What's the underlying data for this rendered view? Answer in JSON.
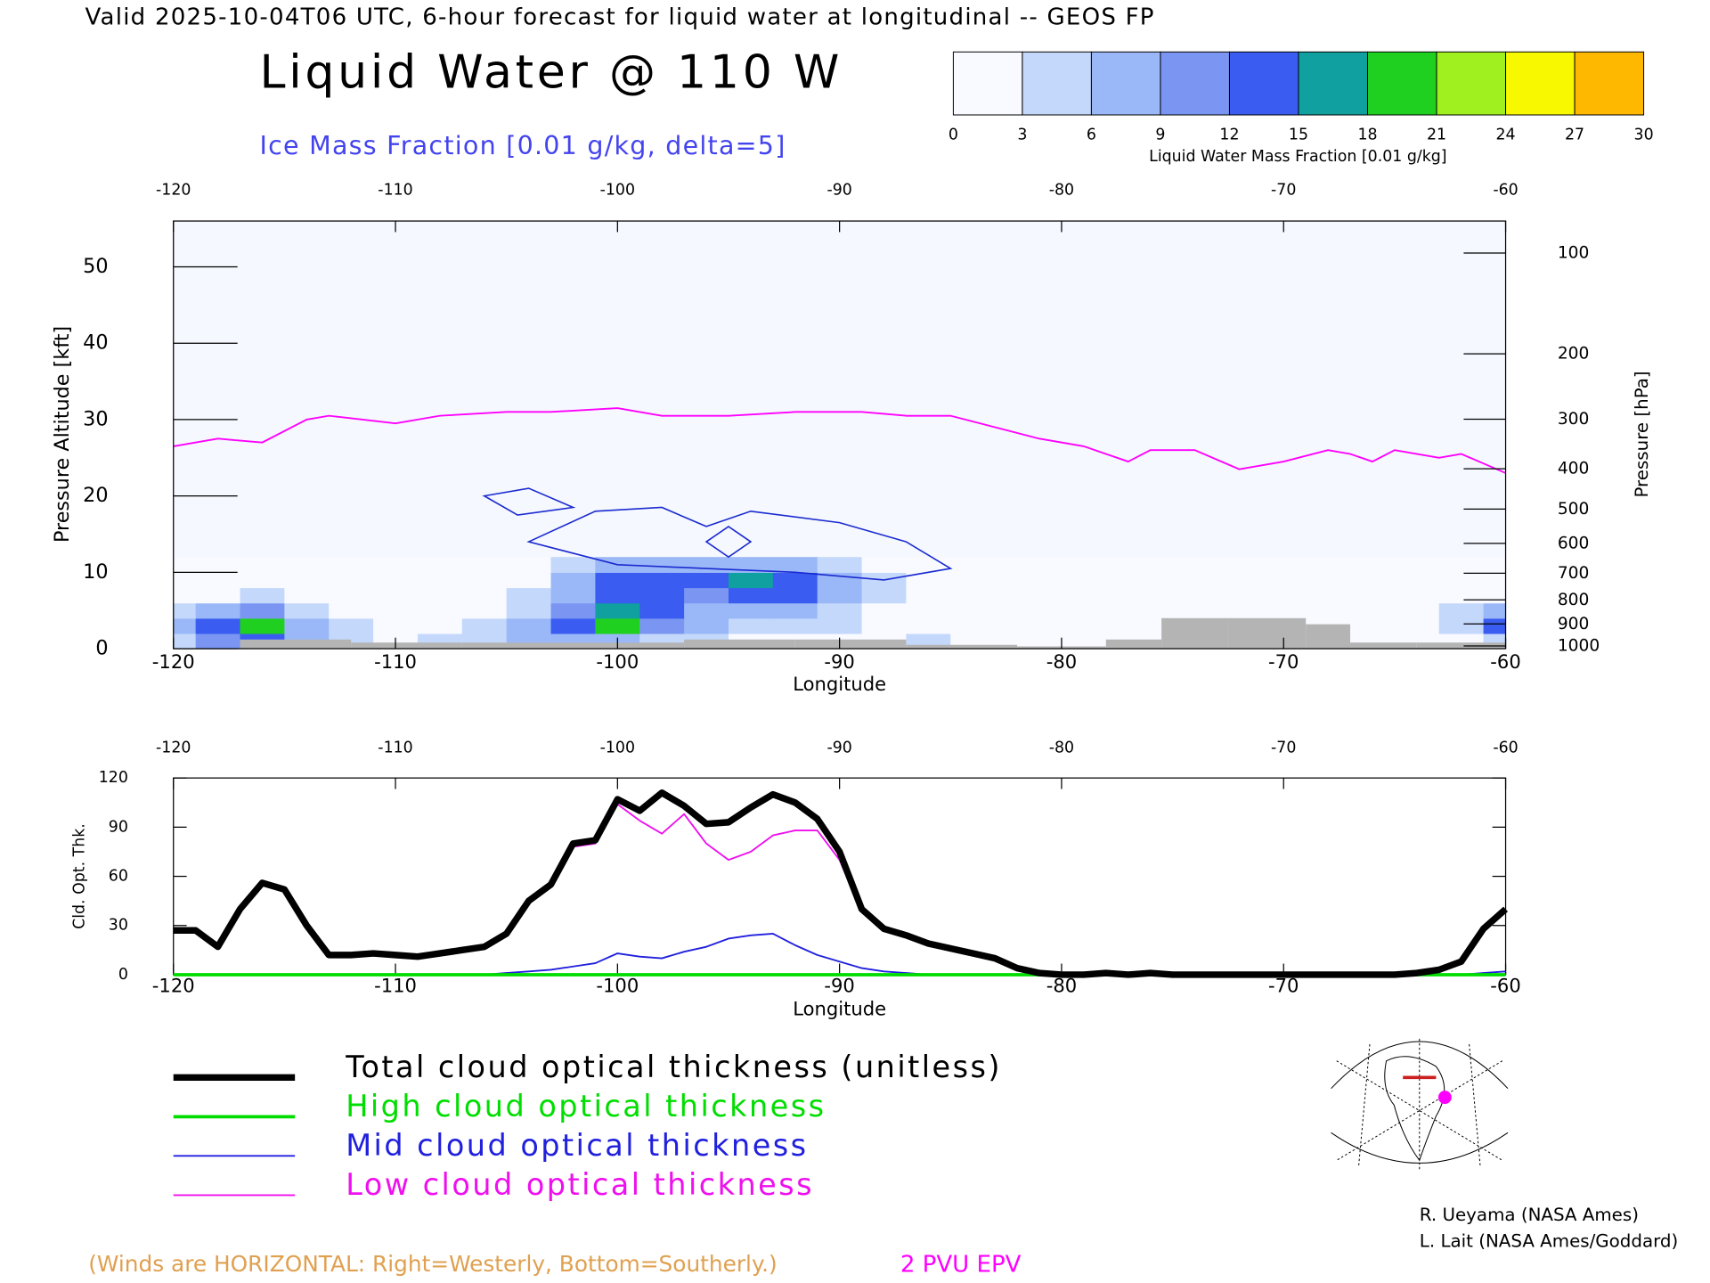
{
  "header": "Valid 2025-10-04T06 UTC, 6-hour forecast for liquid water at longitudinal -- GEOS FP",
  "chart_data": [
    {
      "type": "cross_section",
      "title": "Liquid Water @ 110 W",
      "subtitle": "Ice Mass Fraction [0.01 g/kg, delta=5]",
      "xlabel": "Longitude",
      "ylabel": "Pressure Altitude [kft]",
      "y2label": "Pressure [hPa]",
      "xlim": [
        -120,
        -60
      ],
      "xticks": [
        -120,
        -110,
        -100,
        -90,
        -80,
        -70,
        -60
      ],
      "ylim": [
        0,
        56
      ],
      "yticks": [
        0,
        10,
        20,
        30,
        40,
        50
      ],
      "y2scale": "pressure",
      "y2ticks": [
        100,
        200,
        300,
        400,
        500,
        600,
        700,
        800,
        900,
        1000
      ],
      "background": "#f5f8fe",
      "colorbar": {
        "label": "Liquid Water Mass Fraction [0.01 g/kg]",
        "ticks": [
          0,
          3,
          6,
          9,
          12,
          15,
          18,
          21,
          24,
          27,
          30
        ],
        "colors": [
          "#f8faff",
          "#c4d8fb",
          "#9ab8f7",
          "#7a96f2",
          "#3a5cf0",
          "#10a0a0",
          "#20d020",
          "#a0f020",
          "#f8f800",
          "#ffb800",
          "#ff6000"
        ]
      },
      "liquid_water": {
        "x": [
          -120,
          -118,
          -116,
          -114,
          -112,
          -110,
          -108,
          -106,
          -104,
          -102,
          -100,
          -98,
          -96,
          -94,
          -92,
          -90,
          -88,
          -86,
          -84,
          -82,
          -80,
          -78,
          -76,
          -74,
          -72,
          -70,
          -68,
          -66,
          -64,
          -62,
          -60
        ],
        "y": [
          1,
          3,
          5,
          7,
          9,
          11
        ],
        "values": [
          [
            4,
            10,
            14,
            6,
            3,
            2,
            3,
            4,
            6,
            8,
            6,
            4,
            3,
            2,
            2,
            1,
            2,
            3,
            1,
            0,
            0,
            0,
            0,
            0,
            0,
            0,
            0,
            0,
            0,
            2,
            4
          ],
          [
            6,
            14,
            18,
            8,
            3,
            2,
            2,
            3,
            6,
            14,
            18,
            10,
            6,
            5,
            4,
            3,
            2,
            1,
            0,
            0,
            0,
            0,
            0,
            0,
            0,
            0,
            0,
            0,
            0,
            4,
            12
          ],
          [
            3,
            8,
            10,
            4,
            1,
            0,
            0,
            2,
            5,
            10,
            16,
            12,
            8,
            8,
            7,
            5,
            2,
            0,
            0,
            0,
            0,
            0,
            0,
            0,
            0,
            0,
            0,
            0,
            0,
            3,
            8
          ],
          [
            0,
            2,
            3,
            1,
            0,
            0,
            0,
            1,
            3,
            8,
            14,
            12,
            10,
            14,
            12,
            8,
            3,
            0,
            0,
            0,
            0,
            0,
            0,
            0,
            0,
            0,
            0,
            0,
            0,
            0,
            2
          ],
          [
            0,
            0,
            0,
            0,
            0,
            0,
            0,
            0,
            2,
            6,
            12,
            14,
            12,
            16,
            14,
            8,
            4,
            1,
            0,
            0,
            0,
            0,
            0,
            0,
            0,
            0,
            0,
            0,
            0,
            0,
            0
          ],
          [
            0,
            0,
            0,
            0,
            0,
            0,
            0,
            0,
            1,
            3,
            6,
            8,
            6,
            8,
            6,
            4,
            2,
            0,
            0,
            0,
            0,
            0,
            0,
            0,
            0,
            0,
            0,
            0,
            0,
            0,
            0
          ]
        ]
      },
      "ice_color": "#1a2ad0",
      "ice_contours": [
        {
          "x": [
            -104,
            -101,
            -98,
            -96,
            -94,
            -90,
            -87,
            -85,
            -88,
            -92,
            -96,
            -100
          ],
          "values": [
            14,
            18,
            18.5,
            16,
            18,
            16.5,
            14,
            10.5,
            9,
            10,
            10.5,
            11
          ]
        },
        {
          "x": [
            -106,
            -104,
            -102,
            -104.5
          ],
          "values": [
            20,
            21,
            18.5,
            17.5
          ]
        },
        {
          "x": [
            -96,
            -95,
            -94,
            -95
          ],
          "values": [
            14,
            16,
            14,
            12
          ]
        }
      ],
      "terrain": {
        "color": "#b4b4b4",
        "x": [
          -117,
          -112,
          -107,
          -102,
          -97,
          -92,
          -87,
          -82,
          -78,
          -75.5,
          -72.5,
          -69,
          -67,
          -64
        ],
        "values": [
          1.2,
          0.8,
          0.8,
          0.8,
          1.2,
          1.2,
          0.5,
          0.3,
          1.2,
          4,
          4,
          3.2,
          0.8,
          0.8
        ]
      },
      "series": [
        {
          "name": "2 PVU EPV",
          "color": "#ff00ff",
          "x": [
            -120,
            -118,
            -116,
            -114,
            -113,
            -110,
            -108,
            -105,
            -103,
            -100,
            -98,
            -95,
            -92,
            -89,
            -87,
            -85,
            -83,
            -81,
            -79,
            -78,
            -77,
            -76,
            -74,
            -72,
            -70,
            -68,
            -67,
            -66,
            -65,
            -63,
            -62,
            -60
          ],
          "values": [
            26.5,
            27.5,
            27,
            30,
            30.5,
            29.5,
            30.5,
            31,
            31,
            31.5,
            30.5,
            30.5,
            31,
            31,
            30.5,
            30.5,
            29,
            27.5,
            26.5,
            25.5,
            24.5,
            26,
            26,
            23.5,
            24.5,
            26,
            25.5,
            24.5,
            26,
            25,
            25.5,
            23
          ]
        }
      ],
      "note": "(Winds are HORIZONTAL: Right=Westerly, Bottom=Southerly.)"
    },
    {
      "type": "line",
      "xlabel": "Longitude",
      "ylabel": "Cld. Opt. Thk.",
      "xlim": [
        -120,
        -60
      ],
      "xticks": [
        -120,
        -110,
        -100,
        -90,
        -80,
        -70,
        -60
      ],
      "ylim": [
        0,
        120
      ],
      "yticks": [
        0,
        30,
        60,
        90,
        120
      ],
      "x": [
        -120,
        -119,
        -118,
        -117,
        -116,
        -115,
        -114,
        -113,
        -112,
        -111,
        -110,
        -109,
        -108,
        -107,
        -106,
        -105,
        -104,
        -103,
        -102,
        -101,
        -100,
        -99,
        -98,
        -97,
        -96,
        -95,
        -94,
        -93,
        -92,
        -91,
        -90,
        -89,
        -88,
        -87,
        -86,
        -85,
        -84,
        -83,
        -82,
        -81,
        -80,
        -79,
        -78,
        -77,
        -76,
        -75,
        -74,
        -73,
        -72,
        -71,
        -70,
        -69,
        -68,
        -67,
        -66,
        -65,
        -64,
        -63,
        -62,
        -61,
        -60
      ],
      "series": [
        {
          "name": "Total cloud optical thickness (unitless)",
          "color": "#000000",
          "width": 6,
          "values": [
            27,
            27,
            17,
            40,
            56,
            52,
            30,
            12,
            12,
            13,
            12,
            11,
            13,
            15,
            17,
            25,
            45,
            55,
            80,
            82,
            107,
            100,
            111,
            103,
            92,
            93,
            102,
            110,
            105,
            95,
            75,
            40,
            28,
            24,
            19,
            16,
            13,
            10,
            4,
            1,
            0,
            0,
            1,
            0,
            1,
            0,
            0,
            0,
            0,
            0,
            0,
            0,
            0,
            0,
            0,
            0,
            1,
            3,
            8,
            28,
            40
          ]
        },
        {
          "name": "High cloud optical thickness",
          "color": "#00dd00",
          "width": 3,
          "values": [
            0,
            0,
            0,
            0,
            0,
            0,
            0,
            0,
            0,
            0,
            0,
            0,
            0,
            0,
            0,
            0,
            0,
            0,
            0,
            0,
            0,
            0,
            0,
            0,
            0,
            0,
            0,
            0,
            0,
            0,
            0,
            0,
            0,
            0,
            0,
            0,
            0,
            0,
            0,
            0,
            0,
            0,
            0,
            0,
            0,
            0,
            0,
            0,
            0,
            0,
            0,
            0,
            0,
            0,
            0,
            0,
            0,
            0,
            0,
            0,
            0
          ]
        },
        {
          "name": "Mid cloud optical thickness",
          "color": "#2020dd",
          "width": 1.5,
          "values": [
            0,
            0,
            0,
            0,
            0,
            0,
            0,
            0,
            0,
            0,
            0,
            0,
            0,
            0,
            0,
            1,
            2,
            3,
            5,
            7,
            13,
            11,
            10,
            14,
            17,
            22,
            24,
            25,
            18,
            12,
            8,
            4,
            2,
            1,
            0,
            0,
            0,
            0,
            0,
            0,
            0,
            0,
            0,
            0,
            0,
            0,
            0,
            0,
            0,
            0,
            0,
            0,
            0,
            0,
            0,
            0,
            0,
            0,
            0,
            1,
            2
          ]
        },
        {
          "name": "Low cloud optical thickness",
          "color": "#ee10ee",
          "width": 1.5,
          "values": [
            27,
            27,
            17,
            40,
            56,
            52,
            30,
            12,
            12,
            13,
            12,
            11,
            13,
            15,
            17,
            25,
            44,
            54,
            78,
            80,
            104,
            94,
            86,
            98,
            80,
            70,
            75,
            85,
            88,
            88,
            70,
            38,
            27,
            23,
            19,
            16,
            13,
            10,
            4,
            1,
            0,
            0,
            1,
            0,
            1,
            0,
            0,
            0,
            0,
            0,
            0,
            0,
            0,
            0,
            0,
            0,
            1,
            3,
            8,
            28,
            40
          ]
        }
      ]
    }
  ],
  "credits": [
    "R. Ueyama (NASA Ames)",
    "L. Lait (NASA Ames/Goddard)"
  ]
}
